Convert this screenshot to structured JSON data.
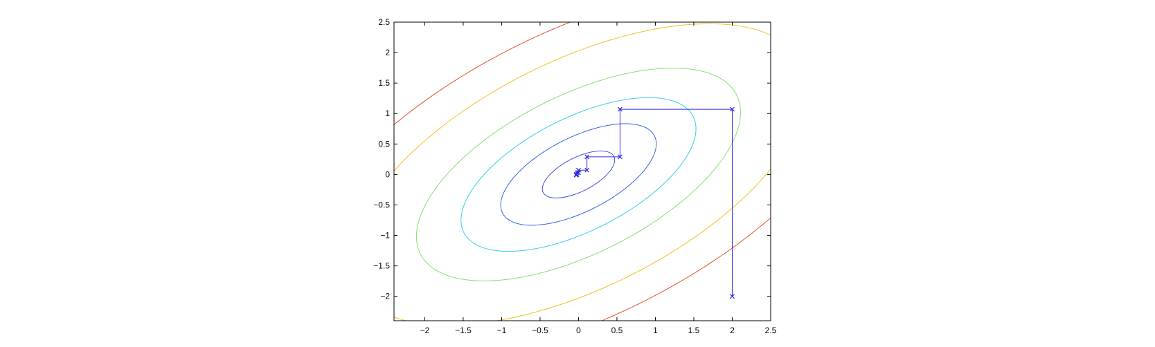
{
  "chart_data": {
    "type": "line",
    "title": "",
    "xlabel": "",
    "ylabel": "",
    "xlim": [
      -2.4,
      2.5
    ],
    "ylim": [
      -2.4,
      2.5
    ],
    "grid": false,
    "x_ticks": [
      -2,
      -1.5,
      -1,
      -0.5,
      0,
      0.5,
      1,
      1.5,
      2,
      2.5
    ],
    "y_ticks": [
      -2,
      -1.5,
      -1,
      -0.5,
      0,
      0.5,
      1,
      1.5,
      2,
      2.5
    ],
    "x_tick_labels": [
      "−2",
      "−1.5",
      "−1",
      "−0.5",
      "0",
      "0.5",
      "1",
      "1.5",
      "2",
      "2.5"
    ],
    "y_tick_labels": [
      "−2",
      "−1.5",
      "−1",
      "−0.5",
      "0",
      "0.5",
      "1",
      "1.5",
      "2",
      "2.5"
    ],
    "contours": [
      {
        "level": 1,
        "color": "#3a4fe0",
        "center": [
          0,
          0
        ],
        "semi_major": 0.55,
        "semi_minor": 0.26,
        "angle_deg": 36
      },
      {
        "level": 2,
        "color": "#2f63e6",
        "center": [
          0,
          0
        ],
        "semi_major": 1.18,
        "semi_minor": 0.57,
        "angle_deg": 36
      },
      {
        "level": 3,
        "color": "#2ecfe6",
        "center": [
          0,
          0
        ],
        "semi_major": 1.78,
        "semi_minor": 0.87,
        "angle_deg": 36
      },
      {
        "level": 4,
        "color": "#80e070",
        "center": [
          0,
          0
        ],
        "semi_major": 2.45,
        "semi_minor": 1.22,
        "angle_deg": 36
      },
      {
        "level": 5,
        "color": "#f0c020",
        "center": [
          0,
          0
        ],
        "semi_major": 3.45,
        "semi_minor": 1.75,
        "angle_deg": 36
      },
      {
        "level": 6,
        "color": "#e0502a",
        "center": [
          0,
          0
        ],
        "semi_major": 4.35,
        "semi_minor": 2.2,
        "angle_deg": 36
      }
    ],
    "series": [
      {
        "color": "#2a2ae8",
        "marker": "x",
        "x": [
          2,
          2,
          0.54,
          0.54,
          0.11,
          0.11,
          0.0,
          0.0,
          -0.02,
          -0.02,
          -0.03,
          -0.03
        ],
        "y": [
          -2,
          1.07,
          1.07,
          0.29,
          0.29,
          0.07,
          0.07,
          0.03,
          0.03,
          0.0,
          0.0,
          -0.01
        ]
      }
    ]
  }
}
